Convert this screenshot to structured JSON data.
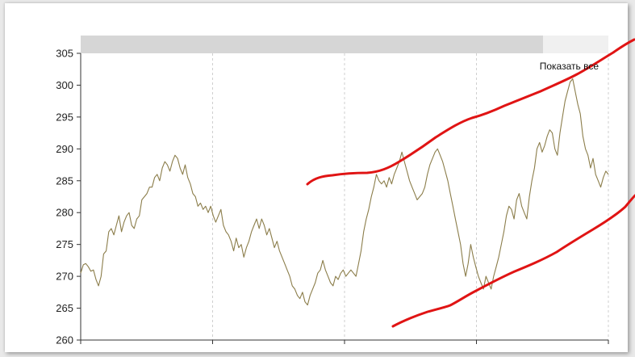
{
  "chart_data": {
    "type": "line",
    "title": "",
    "xlabel": "",
    "ylabel": "",
    "ylim": [
      260,
      305
    ],
    "y_ticks": [
      305,
      300,
      295,
      290,
      285,
      280,
      275,
      270,
      265,
      260
    ],
    "grid": "vertical dashed",
    "series_color": "#8b7d4a",
    "annotation_color": "#e01414",
    "series": [
      {
        "values": [
          270.5,
          271.8,
          272.0,
          271.5,
          270.8,
          271.0,
          269.5,
          268.5,
          270.0,
          273.5,
          274.0,
          277.0,
          277.5,
          276.5,
          278.0,
          279.5,
          277.0,
          278.5,
          279.5,
          280.0,
          278.0,
          277.5,
          279.0,
          279.5,
          282.0,
          282.5,
          283.0,
          284.0,
          284.0,
          285.5,
          286.0,
          285.0,
          287.0,
          288.0,
          287.5,
          286.5,
          288.0,
          289.0,
          288.5,
          287.0,
          286.0,
          287.5,
          285.5,
          284.5,
          283.0,
          282.5,
          281.0,
          281.5,
          280.5,
          281.0,
          280.0,
          281.0,
          279.5,
          278.5,
          279.5,
          280.5,
          278.0,
          277.0,
          276.5,
          275.5,
          274.0,
          276.0,
          274.5,
          275.0,
          273.0,
          274.5,
          275.5,
          277.0,
          278.0,
          279.0,
          277.5,
          279.0,
          278.0,
          276.5,
          277.5,
          276.0,
          274.5,
          275.5,
          274.0,
          273.0,
          272.0,
          271.0,
          270.0,
          268.5,
          268.0,
          267.0,
          266.5,
          267.5,
          266.0,
          265.5,
          267.0,
          268.0,
          269.0,
          270.5,
          271.0,
          272.5,
          271.0,
          270.0,
          269.0,
          268.5,
          270.0,
          269.5,
          270.5,
          271.0,
          270.0,
          270.5,
          271.0,
          270.5,
          270.0,
          272.0,
          274.0,
          277.0,
          279.0,
          280.5,
          282.5,
          284.0,
          286.0,
          285.0,
          284.5,
          285.0,
          284.0,
          285.5,
          284.5,
          286.0,
          287.0,
          288.0,
          289.5,
          288.0,
          286.5,
          285.0,
          284.0,
          283.0,
          282.0,
          282.5,
          283.0,
          284.0,
          286.0,
          287.5,
          288.5,
          289.5,
          290.0,
          289.0,
          288.0,
          286.5,
          285.0,
          283.0,
          281.0,
          279.0,
          277.0,
          275.0,
          272.0,
          270.0,
          272.0,
          275.0,
          273.0,
          271.5,
          270.0,
          269.0,
          268.0,
          270.0,
          269.0,
          268.0,
          270.0,
          271.5,
          273.0,
          275.0,
          277.0,
          279.5,
          281.0,
          280.5,
          279.0,
          282.0,
          283.0,
          281.0,
          280.0,
          279.0,
          282.5,
          285.0,
          287.0,
          290.0,
          291.0,
          289.5,
          290.5,
          292.0,
          293.0,
          292.5,
          290.0,
          289.0,
          292.5,
          295.0,
          297.5,
          299.0,
          300.5,
          301.0,
          299.0,
          297.0,
          295.5,
          292.0,
          290.0,
          289.0,
          287.0,
          288.5,
          286.0,
          285.0,
          284.0,
          285.5,
          286.5,
          286.0
        ]
      }
    ]
  },
  "controls": {
    "show_all_label": "Показать все"
  }
}
